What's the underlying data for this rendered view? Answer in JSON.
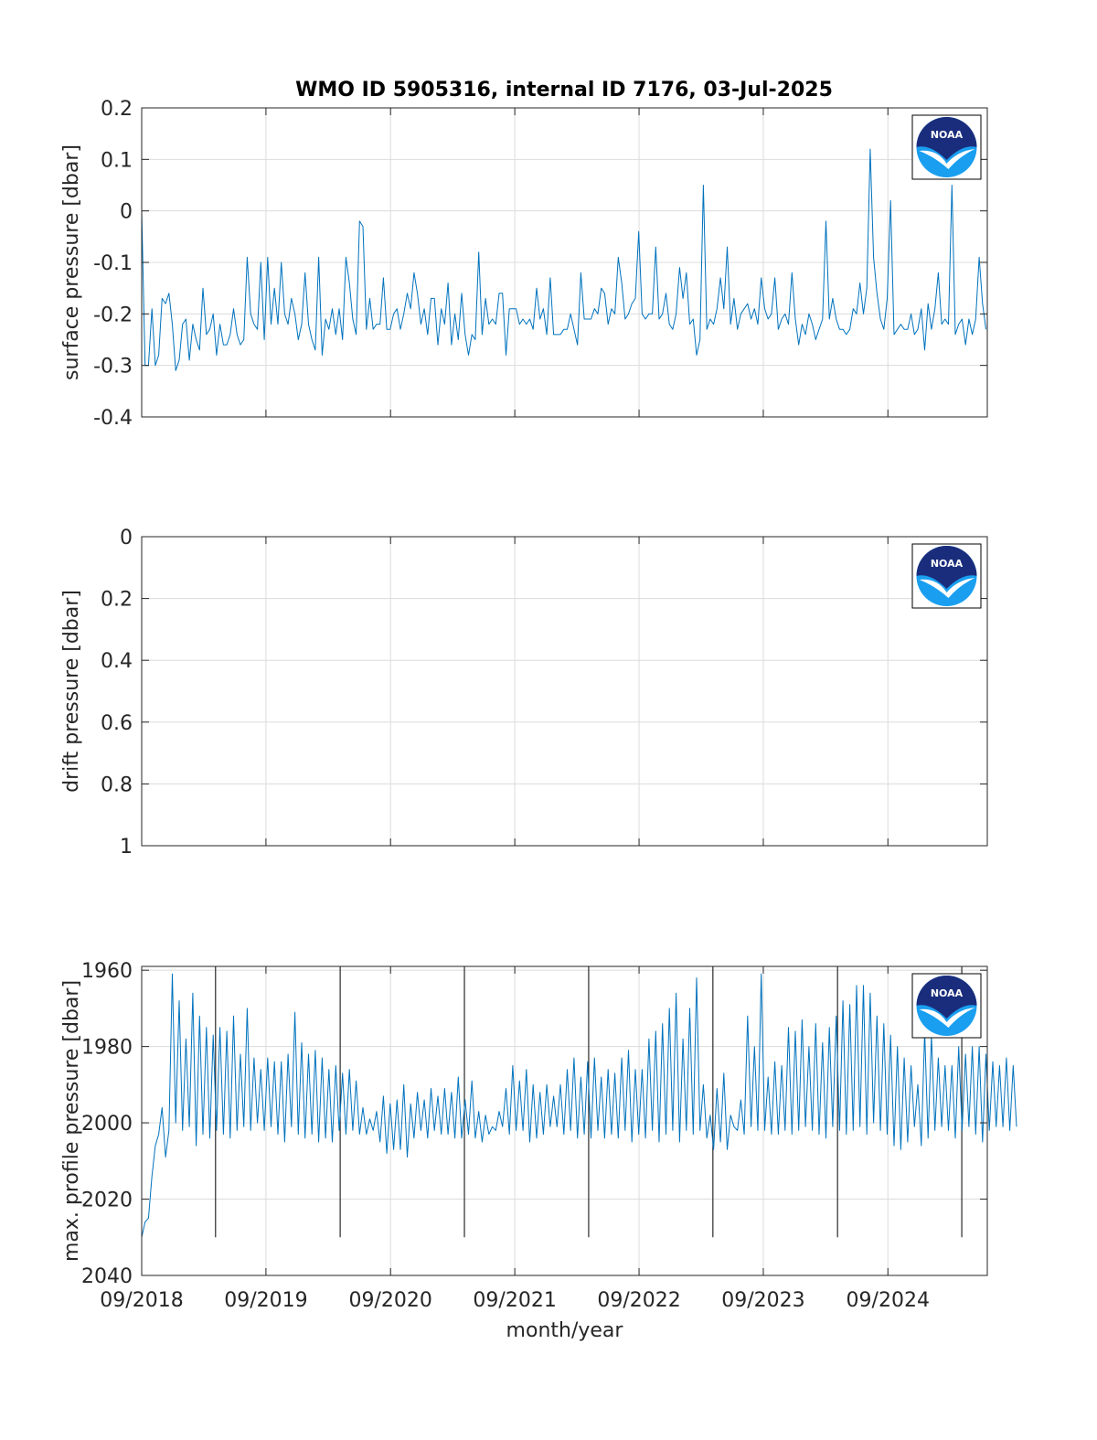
{
  "figure": {
    "title": "WMO ID 5905316, internal ID 7176, 03-Jul-2025",
    "logo_text": "NOAA",
    "line_color": "#0072BD",
    "marker_line_color": "#000000",
    "grid_color": "#dcdcdc"
  },
  "chart_data": [
    {
      "type": "line",
      "ylabel": "surface pressure [dbar]",
      "xlabel": "",
      "xlim": [
        "2018-09-01",
        "2025-06-20"
      ],
      "ylim": [
        -0.4,
        0.2
      ],
      "y_reversed": false,
      "grid": true,
      "yticks": [
        "0.2",
        "0.1",
        "0",
        "-0.1",
        "-0.2",
        "-0.3",
        "-0.4"
      ],
      "ytick_values": [
        0.2,
        0.1,
        0,
        -0.1,
        -0.2,
        -0.3,
        -0.4
      ],
      "x_start": "2018-09-01",
      "cycle_days": 10,
      "series": [
        {
          "values": [
            0.0,
            -0.3,
            -0.3,
            -0.19,
            -0.3,
            -0.28,
            -0.17,
            -0.18,
            -0.16,
            -0.22,
            -0.31,
            -0.29,
            -0.22,
            -0.21,
            -0.29,
            -0.22,
            -0.25,
            -0.27,
            -0.15,
            -0.24,
            -0.23,
            -0.2,
            -0.28,
            -0.22,
            -0.26,
            -0.26,
            -0.24,
            -0.19,
            -0.24,
            -0.26,
            -0.25,
            -0.09,
            -0.2,
            -0.22,
            -0.23,
            -0.1,
            -0.25,
            -0.09,
            -0.22,
            -0.15,
            -0.22,
            -0.1,
            -0.2,
            -0.22,
            -0.17,
            -0.2,
            -0.25,
            -0.22,
            -0.12,
            -0.22,
            -0.25,
            -0.27,
            -0.09,
            -0.28,
            -0.21,
            -0.23,
            -0.19,
            -0.24,
            -0.19,
            -0.25,
            -0.09,
            -0.14,
            -0.21,
            -0.24,
            -0.02,
            -0.03,
            -0.23,
            -0.17,
            -0.23,
            -0.22,
            -0.22,
            -0.13,
            -0.23,
            -0.23,
            -0.2,
            -0.19,
            -0.23,
            -0.2,
            -0.16,
            -0.19,
            -0.12,
            -0.16,
            -0.22,
            -0.19,
            -0.24,
            -0.17,
            -0.17,
            -0.26,
            -0.19,
            -0.22,
            -0.14,
            -0.26,
            -0.2,
            -0.25,
            -0.16,
            -0.24,
            -0.28,
            -0.24,
            -0.25,
            -0.08,
            -0.24,
            -0.17,
            -0.22,
            -0.21,
            -0.22,
            -0.16,
            -0.16,
            -0.28,
            -0.19,
            -0.19,
            -0.19,
            -0.22,
            -0.21,
            -0.22,
            -0.21,
            -0.23,
            -0.15,
            -0.21,
            -0.19,
            -0.24,
            -0.13,
            -0.24,
            -0.24,
            -0.24,
            -0.23,
            -0.23,
            -0.2,
            -0.23,
            -0.26,
            -0.12,
            -0.21,
            -0.21,
            -0.21,
            -0.19,
            -0.2,
            -0.15,
            -0.16,
            -0.22,
            -0.19,
            -0.2,
            -0.09,
            -0.14,
            -0.21,
            -0.2,
            -0.18,
            -0.17,
            -0.04,
            -0.2,
            -0.21,
            -0.2,
            -0.2,
            -0.07,
            -0.21,
            -0.2,
            -0.16,
            -0.22,
            -0.23,
            -0.2,
            -0.11,
            -0.17,
            -0.12,
            -0.22,
            -0.21,
            -0.28,
            -0.25,
            0.05,
            -0.23,
            -0.21,
            -0.22,
            -0.19,
            -0.13,
            -0.19,
            -0.07,
            -0.22,
            -0.17,
            -0.23,
            -0.2,
            -0.19,
            -0.18,
            -0.21,
            -0.19,
            -0.22,
            -0.13,
            -0.19,
            -0.21,
            -0.2,
            -0.13,
            -0.23,
            -0.21,
            -0.2,
            -0.22,
            -0.12,
            -0.21,
            -0.26,
            -0.22,
            -0.24,
            -0.2,
            -0.22,
            -0.25,
            -0.23,
            -0.21,
            -0.02,
            -0.21,
            -0.17,
            -0.21,
            -0.23,
            -0.23,
            -0.24,
            -0.23,
            -0.19,
            -0.2,
            -0.14,
            -0.2,
            -0.15,
            0.12,
            -0.09,
            -0.16,
            -0.21,
            -0.23,
            -0.17,
            0.02,
            -0.24,
            -0.23,
            -0.22,
            -0.23,
            -0.23,
            -0.2,
            -0.24,
            -0.23,
            -0.19,
            -0.27,
            -0.18,
            -0.23,
            -0.19,
            -0.12,
            -0.22,
            -0.21,
            -0.22,
            0.05,
            -0.24,
            -0.22,
            -0.21,
            -0.26,
            -0.21,
            -0.24,
            -0.21,
            -0.09,
            -0.18,
            -0.23
          ]
        }
      ]
    },
    {
      "type": "line",
      "ylabel": "drift pressure [dbar]",
      "xlabel": "",
      "xlim": [
        "2018-09-01",
        "2025-06-20"
      ],
      "ylim": [
        0,
        1
      ],
      "y_reversed": true,
      "grid": true,
      "yticks": [
        "0",
        "0.2",
        "0.4",
        "0.6",
        "0.8",
        "1"
      ],
      "ytick_values": [
        0,
        0.2,
        0.4,
        0.6,
        0.8,
        1
      ],
      "series": []
    },
    {
      "type": "line",
      "ylabel": "max. profile pressure [dbar]",
      "xlabel": "month/year",
      "xlim": [
        "2018-09-01",
        "2025-06-20"
      ],
      "ylim": [
        1959,
        2040
      ],
      "y_reversed": true,
      "grid": true,
      "yticks": [
        "1960",
        "1980",
        "2000",
        "2020",
        "2040"
      ],
      "ytick_values": [
        1960,
        1980,
        2000,
        2020,
        2040
      ],
      "xticks": [
        "09/2018",
        "09/2019",
        "09/2020",
        "09/2021",
        "09/2022",
        "09/2023",
        "09/2024"
      ],
      "xtick_values": [
        "2018-09-01",
        "2019-09-01",
        "2020-09-01",
        "2021-09-01",
        "2022-09-01",
        "2023-09-01",
        "2024-09-01"
      ],
      "reference_lines": [
        "2019-04-06",
        "2020-04-06",
        "2021-04-06",
        "2022-04-06",
        "2023-04-06",
        "2024-04-06",
        "2025-04-06"
      ],
      "reference_line_range": [
        1959,
        2030
      ],
      "x_start": "2018-09-01",
      "cycle_days": 10,
      "series": [
        {
          "values": [
            2030,
            2026,
            2025,
            2014,
            2006,
            2003,
            1996,
            2009,
            2002,
            1961,
            2000,
            1968,
            2002,
            1978,
            2001,
            1966,
            2006,
            1972,
            2003,
            1975,
            2004,
            1977,
            2002,
            1975,
            2003,
            1976,
            2004,
            1972,
            2002,
            1982,
            2001,
            1970,
            2002,
            1983,
            2000,
            1986,
            2002,
            1983,
            2001,
            1984,
            2003,
            1984,
            2005,
            1982,
            2001,
            1971,
            2003,
            1979,
            2004,
            1982,
            2003,
            1981,
            2005,
            1983,
            2004,
            1986,
            2005,
            1985,
            2002,
            1987,
            2003,
            1986,
            2002,
            1989,
            2003,
            1996,
            2003,
            1999,
            2002,
            1997,
            2005,
            1993,
            2008,
            1995,
            2007,
            1994,
            2007,
            1990,
            2009,
            1995,
            2004,
            1992,
            2002,
            1994,
            2004,
            1991,
            2002,
            1993,
            2003,
            1991,
            2003,
            1992,
            2004,
            1988,
            2004,
            1994,
            2003,
            1989,
            2004,
            1997,
            2005,
            1998,
            2003,
            2001,
            2002,
            1997,
            2001,
            1991,
            2003,
            1985,
            2002,
            1989,
            2002,
            1986,
            2005,
            1990,
            2004,
            1992,
            2003,
            1990,
            2001,
            1993,
            2001,
            1990,
            2003,
            1986,
            2002,
            1983,
            2004,
            1988,
            2003,
            1984,
            2004,
            1983,
            2002,
            1988,
            2004,
            1986,
            2003,
            1987,
            2004,
            1983,
            2002,
            1981,
            2005,
            1986,
            2003,
            1986,
            2004,
            1978,
            2002,
            1976,
            2005,
            1974,
            2003,
            1970,
            2002,
            1966,
            2005,
            1978,
            2002,
            1970,
            2003,
            1962,
            2002,
            1990,
            2004,
            1998,
            2007,
            1991,
            2005,
            1987,
            2007,
            1998,
            2001,
            2002,
            1994,
            2003,
            1972,
            2001,
            1980,
            2002,
            1961,
            2002,
            1988,
            2003,
            1984,
            2003,
            1985,
            2002,
            1975,
            2003,
            1976,
            2002,
            1973,
            2001,
            1980,
            2002,
            1974,
            2003,
            1979,
            2004,
            1975,
            2001,
            1972,
            2002,
            1968,
            2003,
            1969,
            2002,
            1964,
            2001,
            1964,
            2003,
            1966,
            2000,
            1972,
            2002,
            1974,
            2003,
            1977,
            2006,
            1980,
            2007,
            1983,
            2005,
            1985,
            2001,
            1990,
            2006,
            1976,
            2004,
            1977,
            2002,
            1983,
            2001,
            1985,
            2002,
            1985,
            2004,
            1980,
            2002,
            1982,
            2001,
            1980,
            2003,
            1980,
            2005,
            1982,
            2002,
            1984,
            2001,
            1985,
            2001,
            1983,
            2002,
            1985,
            2001
          ]
        }
      ]
    }
  ]
}
